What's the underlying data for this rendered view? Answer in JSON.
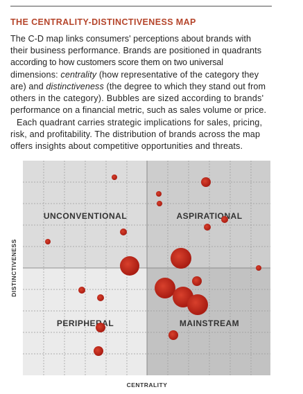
{
  "title": "THE CENTRALITY-DISTINCTIVENESS MAP",
  "paragraph1": [
    "The C-D map links consumers' perceptions about brands with",
    "their business performance. Brands are positioned in quadrants",
    "according to how customers score them on two universal",
    [
      "dimensions: ",
      "centrality",
      " (how representative of the category they"
    ],
    [
      "are) and ",
      "distinctiveness",
      " (the degree to which they stand out from"
    ],
    "others in the category). Bubbles are sized according to brands'",
    "performance on a financial metric, such as sales volume or price."
  ],
  "paragraph2": [
    "Each quadrant carries strategic implications for sales, pricing,",
    "risk, and profitability. The distribution of brands across the map",
    "offers insights about competitive opportunities and threats."
  ],
  "map": {
    "quadrants": [
      "UNCONVENTIONAL",
      "ASPIRATIONAL",
      "PERIPHERAL",
      "MAINSTREAM"
    ],
    "x_label": "CENTRALITY",
    "y_label": "DISTINCTIVENESS"
  }
}
